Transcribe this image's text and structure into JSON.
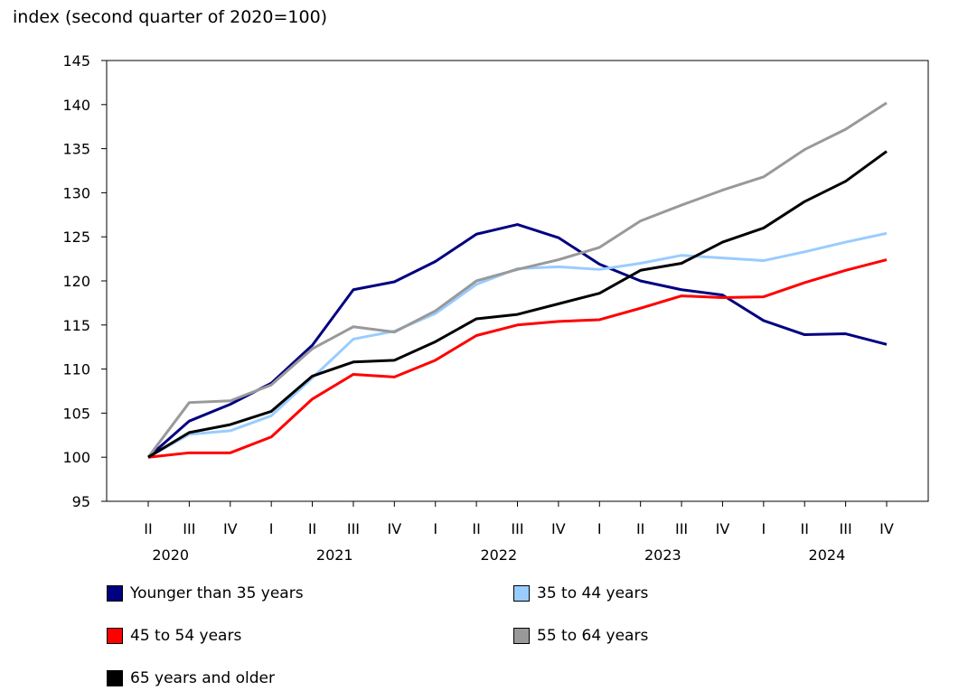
{
  "chart_data": {
    "type": "line",
    "title": "",
    "ylabel": "index (second quarter of 2020=100)",
    "xlabel": "",
    "ylim": [
      95,
      145
    ],
    "yticks": [
      95,
      100,
      105,
      110,
      115,
      120,
      125,
      130,
      135,
      140,
      145
    ],
    "quarters": [
      "II",
      "III",
      "IV",
      "I",
      "II",
      "III",
      "IV",
      "I",
      "II",
      "III",
      "IV",
      "I",
      "II",
      "III",
      "IV",
      "I",
      "II",
      "III",
      "IV"
    ],
    "years": [
      {
        "label": "2020",
        "index": 1
      },
      {
        "label": "2021",
        "index": 5
      },
      {
        "label": "2022",
        "index": 9
      },
      {
        "label": "2023",
        "index": 13
      },
      {
        "label": "2024",
        "index": 17
      }
    ],
    "grid": false,
    "legend_position": "bottom",
    "series": [
      {
        "name": "Younger than 35 years",
        "color": "#000080",
        "values": [
          100,
          104.1,
          106,
          108.4,
          112.7,
          119,
          119.9,
          122.2,
          125.3,
          126.4,
          124.9,
          121.9,
          120,
          119,
          118.4,
          115.5,
          113.9,
          114,
          112.8
        ]
      },
      {
        "name": "35 to 44 years",
        "color": "#99ccff",
        "values": [
          100,
          102.6,
          103,
          104.7,
          109,
          113.4,
          114.3,
          116.3,
          119.6,
          121.4,
          121.6,
          121.3,
          122,
          122.9,
          122.6,
          122.3,
          123.3,
          124.4,
          125.4
        ]
      },
      {
        "name": "45 to 54 years",
        "color": "#ff0000",
        "values": [
          100,
          100.5,
          100.5,
          102.3,
          106.6,
          109.4,
          109.1,
          111,
          113.8,
          115,
          115.4,
          115.6,
          116.9,
          118.3,
          118.1,
          118.2,
          119.8,
          121.2,
          122.4
        ]
      },
      {
        "name": "55 to 64 years",
        "color": "#999999",
        "values": [
          100,
          106.2,
          106.4,
          108.2,
          112.3,
          114.8,
          114.2,
          116.6,
          120,
          121.3,
          122.4,
          123.8,
          126.8,
          128.6,
          130.3,
          131.8,
          134.9,
          137.2,
          140.2
        ]
      },
      {
        "name": "65 years and older",
        "color": "#000000",
        "values": [
          100,
          102.8,
          103.7,
          105.2,
          109.2,
          110.8,
          111,
          113.1,
          115.7,
          116.2,
          117.4,
          118.6,
          121.2,
          122,
          124.4,
          126,
          129,
          131.3,
          134.7
        ]
      }
    ]
  }
}
